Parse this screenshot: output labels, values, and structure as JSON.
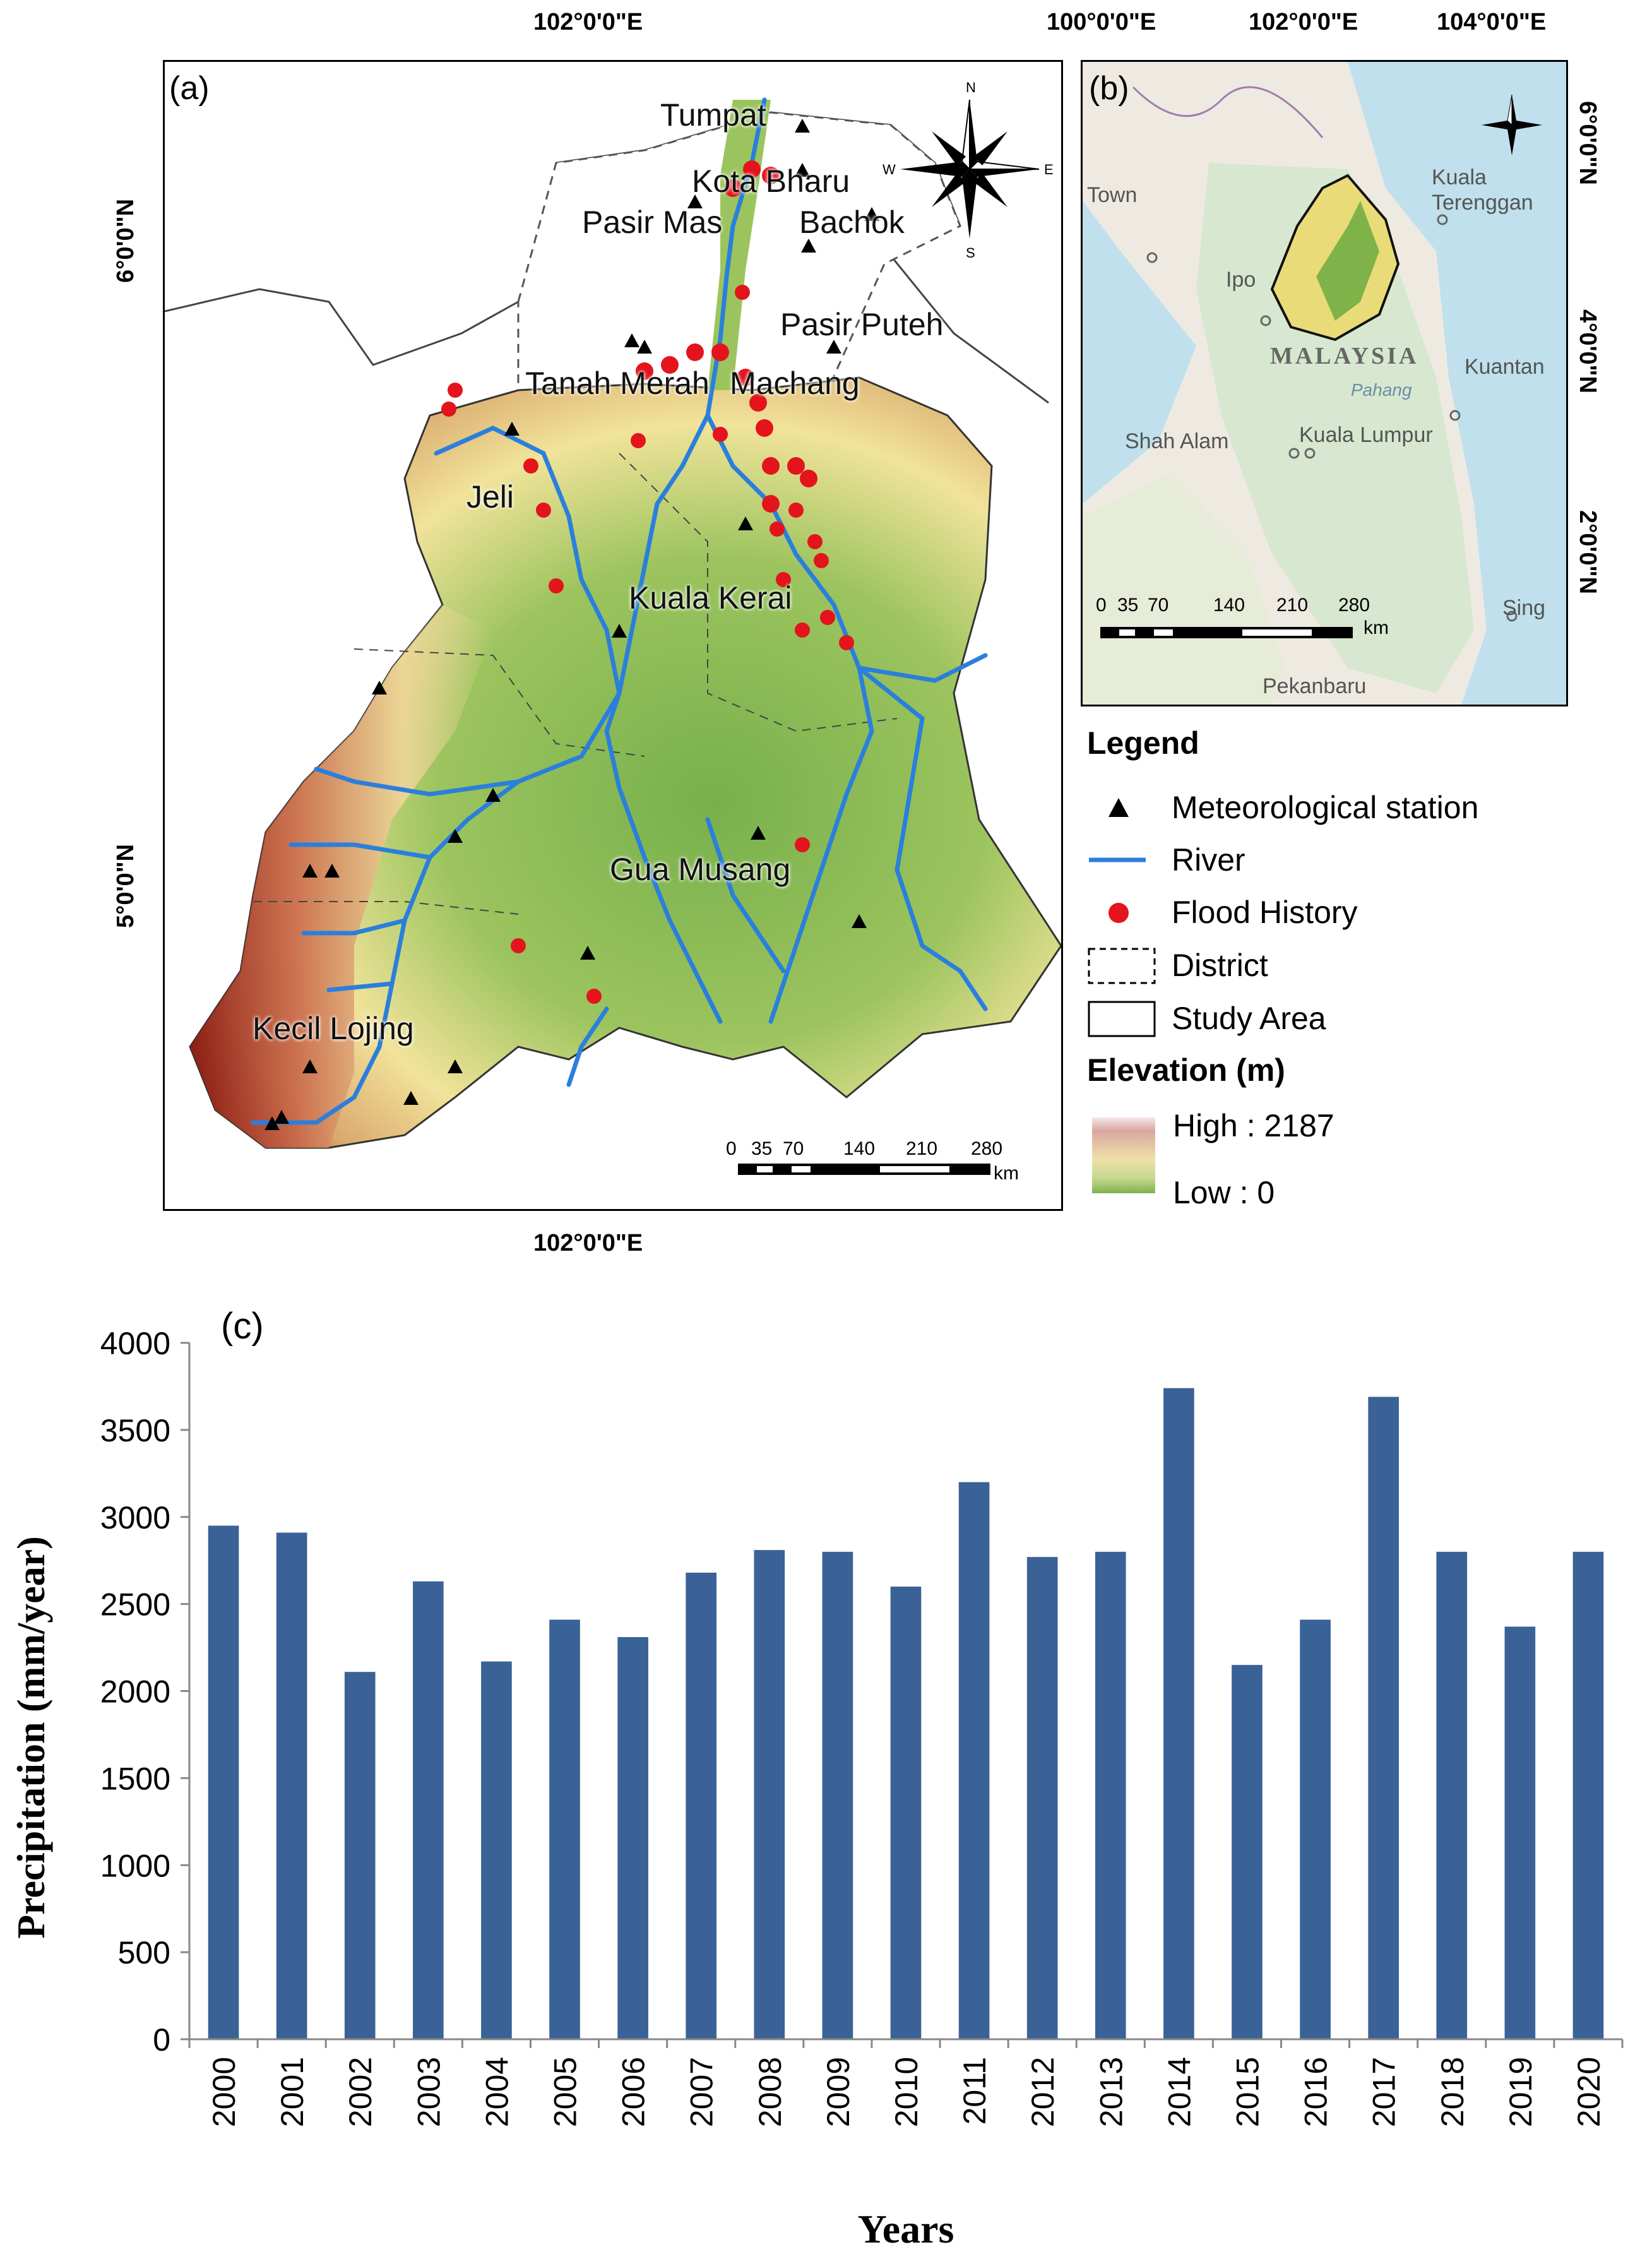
{
  "panel_a": {
    "label": "(a)",
    "top_lon": "102°0'0\"E",
    "bottom_lon": "102°0'0\"E",
    "lat_6": "6°0'0\"N",
    "lat_5": "5°0'0\"N",
    "places": [
      "Tumpat",
      "Kota Bharu",
      "Pasir Mas",
      "Bachok",
      "Pasir Puteh",
      "Tanah Merah",
      "Machang",
      "Jeli",
      "Kuala Kerai",
      "Gua Musang",
      "Kecil Lojing"
    ],
    "scale": {
      "ticks": [
        "0",
        "35",
        "70",
        "140",
        "210",
        "280"
      ],
      "unit": "km"
    }
  },
  "panel_b": {
    "label": "(b)",
    "top_lons": [
      "100°0'0\"E",
      "102°0'0\"E",
      "104°0'0\"E"
    ],
    "right_lats": [
      "6°0'0\"N",
      "4°0'0\"N",
      "2°0'0\"N"
    ],
    "places": {
      "town": "Town",
      "kuala_terengganu": [
        "Kuala",
        "Terenggan"
      ],
      "ipoh": "Ipo",
      "malaysia": "MALAYSIA",
      "kuantan": "Kuantan",
      "pahang": "Pahang",
      "shah_alam": "Shah Alam",
      "kuala_lumpur": "Kuala Lumpur",
      "sing": "Sing",
      "pekanbaru": "Pekanbaru"
    },
    "scale": {
      "ticks": [
        "0",
        "35",
        "70",
        "140",
        "210",
        "280"
      ],
      "unit": "km"
    }
  },
  "legend": {
    "title": "Legend",
    "items": [
      "Meteorological station",
      "River",
      "Flood History",
      "District",
      "Study Area"
    ],
    "elevation_title": "Elevation (m)",
    "high": "High : 2187",
    "low": "Low : 0"
  },
  "chart_data": {
    "type": "bar",
    "panel_label": "(c)",
    "categories": [
      "2000",
      "2001",
      "2002",
      "2003",
      "2004",
      "2005",
      "2006",
      "2007",
      "2008",
      "2009",
      "2010",
      "2011",
      "2012",
      "2013",
      "2014",
      "2015",
      "2016",
      "2017",
      "2018",
      "2019",
      "2020"
    ],
    "values": [
      2950,
      2910,
      2110,
      2630,
      2170,
      2410,
      2310,
      2680,
      2810,
      2800,
      2600,
      3200,
      2770,
      2800,
      3740,
      2150,
      2410,
      3690,
      2800,
      2370,
      2800
    ],
    "xlabel": "Years",
    "ylabel": "Precipitation (mm/year)",
    "ylim": [
      0,
      4000
    ],
    "yticks": [
      "0",
      "500",
      "1000",
      "1500",
      "2000",
      "2500",
      "3000",
      "3500",
      "4000"
    ],
    "bar_color": "#3a6296",
    "grid": false
  }
}
